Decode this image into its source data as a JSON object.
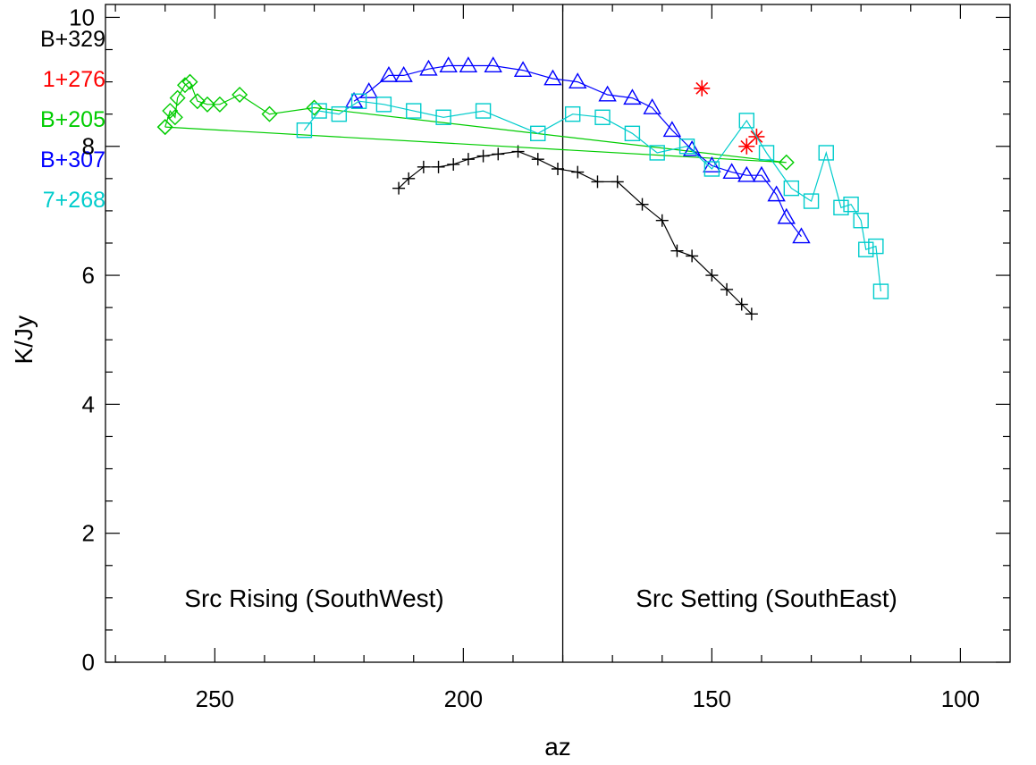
{
  "chart_data": {
    "type": "line",
    "xlabel": "az",
    "ylabel": "K/Jy",
    "xlim": [
      272,
      90
    ],
    "ylim": [
      0,
      10.2
    ],
    "x_ticks": [
      250,
      200,
      150,
      100
    ],
    "y_ticks": [
      0,
      2,
      4,
      6,
      8,
      10
    ],
    "grid": false,
    "divider_x": 180,
    "annotations": [
      {
        "text": "Src Rising (SouthWest)",
        "x": 230,
        "y": 1.0
      },
      {
        "text": "Src Setting (SouthEast)",
        "x": 139,
        "y": 1.0
      }
    ],
    "legend": [
      {
        "label": "B+329",
        "color": "#000000"
      },
      {
        "label": "1+276",
        "color": "#ff0000"
      },
      {
        "label": "B+205",
        "color": "#00cc00"
      },
      {
        "label": "B+307",
        "color": "#0000ff"
      },
      {
        "label": "7+268",
        "color": "#00cccc"
      }
    ],
    "series": [
      {
        "color": "#000000",
        "marker": "plus",
        "connect": true,
        "x": [
          213,
          211,
          208,
          205,
          202,
          199,
          196,
          193,
          189,
          185,
          181,
          177,
          173,
          169,
          164,
          160,
          157,
          154,
          150,
          147,
          144,
          142
        ],
        "y": [
          7.35,
          7.5,
          7.68,
          7.68,
          7.72,
          7.8,
          7.85,
          7.88,
          7.92,
          7.8,
          7.65,
          7.6,
          7.45,
          7.45,
          7.1,
          6.85,
          6.38,
          6.3,
          6.0,
          5.78,
          5.55,
          5.4
        ]
      },
      {
        "color": "#ff0000",
        "marker": "asterisk",
        "connect": false,
        "x": [
          152,
          143,
          141
        ],
        "y": [
          8.9,
          8.0,
          8.15
        ]
      },
      {
        "color": "#00cc00",
        "marker": "diamond",
        "connect": true,
        "x": [
          260,
          259,
          258,
          257.5,
          256,
          255,
          253.5,
          251.5,
          249,
          245,
          239,
          230,
          135,
          260
        ],
        "y": [
          8.3,
          8.55,
          8.45,
          8.75,
          8.95,
          9.0,
          8.7,
          8.65,
          8.65,
          8.8,
          8.5,
          8.6,
          7.75,
          8.3
        ]
      },
      {
        "color": "#0000ff",
        "marker": "triangle",
        "connect": true,
        "x": [
          222,
          219,
          215,
          212,
          207,
          203,
          199,
          194,
          188,
          182,
          177,
          171,
          166,
          162,
          158,
          154,
          150,
          146,
          143,
          140,
          137,
          135,
          132
        ],
        "y": [
          8.7,
          8.85,
          9.1,
          9.1,
          9.2,
          9.25,
          9.25,
          9.25,
          9.18,
          9.05,
          9.0,
          8.8,
          8.75,
          8.6,
          8.25,
          7.95,
          7.7,
          7.6,
          7.55,
          7.55,
          7.25,
          6.9,
          6.6
        ]
      },
      {
        "color": "#00cccc",
        "marker": "square",
        "connect": true,
        "x": [
          232,
          229,
          225,
          221,
          216,
          210,
          204,
          196,
          185,
          178,
          172,
          166,
          161,
          155,
          150,
          143,
          139,
          134,
          130,
          127,
          124,
          122,
          120,
          119,
          117,
          116
        ],
        "y": [
          8.25,
          8.55,
          8.5,
          8.7,
          8.65,
          8.55,
          8.45,
          8.55,
          8.2,
          8.5,
          8.45,
          8.2,
          7.9,
          8.0,
          7.65,
          8.4,
          7.9,
          7.35,
          7.15,
          7.9,
          7.05,
          7.1,
          6.85,
          6.4,
          6.45,
          5.75
        ]
      }
    ]
  }
}
